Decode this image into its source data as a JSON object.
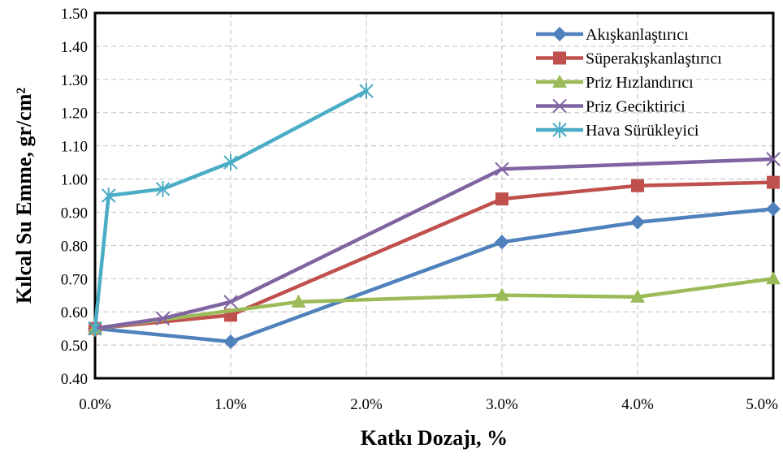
{
  "chart_data": {
    "type": "line",
    "xlabel": "Katkı Dozajı, %",
    "ylabel": "Kılcal Su Emme, gr/cm²",
    "xlim": [
      0,
      5
    ],
    "ylim": [
      0.4,
      1.5
    ],
    "x_ticks": [
      "0.0%",
      "1.0%",
      "2.0%",
      "3.0%",
      "4.0%",
      "5.0%"
    ],
    "y_ticks": [
      "0.40",
      "0.50",
      "0.60",
      "0.70",
      "0.80",
      "0.90",
      "1.00",
      "1.10",
      "1.20",
      "1.30",
      "1.40",
      "1.50"
    ],
    "grid": true,
    "legend_position": "top-right",
    "series": [
      {
        "name": "Akışkanlaştırıcı",
        "color": "#4f81bd",
        "marker": "diamond",
        "x": [
          0,
          1,
          3,
          4,
          5
        ],
        "y": [
          0.55,
          0.51,
          0.81,
          0.87,
          0.91
        ]
      },
      {
        "name": "Süperakışkanlaştırıcı",
        "color": "#c0504d",
        "marker": "square",
        "x": [
          0,
          1,
          3,
          4,
          5
        ],
        "y": [
          0.55,
          0.59,
          0.94,
          0.98,
          0.99
        ]
      },
      {
        "name": "Priz Hızlandırıcı",
        "color": "#9bbb59",
        "marker": "triangle",
        "x": [
          0,
          1.5,
          3,
          4,
          5
        ],
        "y": [
          0.55,
          0.63,
          0.65,
          0.645,
          0.7
        ]
      },
      {
        "name": "Priz Geciktirici",
        "color": "#8064a2",
        "marker": "x",
        "x": [
          0,
          0.5,
          1,
          3,
          5
        ],
        "y": [
          0.55,
          0.58,
          0.63,
          1.03,
          1.06
        ]
      },
      {
        "name": "Hava Sürükleyici",
        "color": "#4bacc6",
        "marker": "star",
        "x": [
          0,
          0.1,
          0.5,
          1,
          2
        ],
        "y": [
          0.55,
          0.95,
          0.97,
          1.05,
          1.265
        ]
      }
    ]
  }
}
